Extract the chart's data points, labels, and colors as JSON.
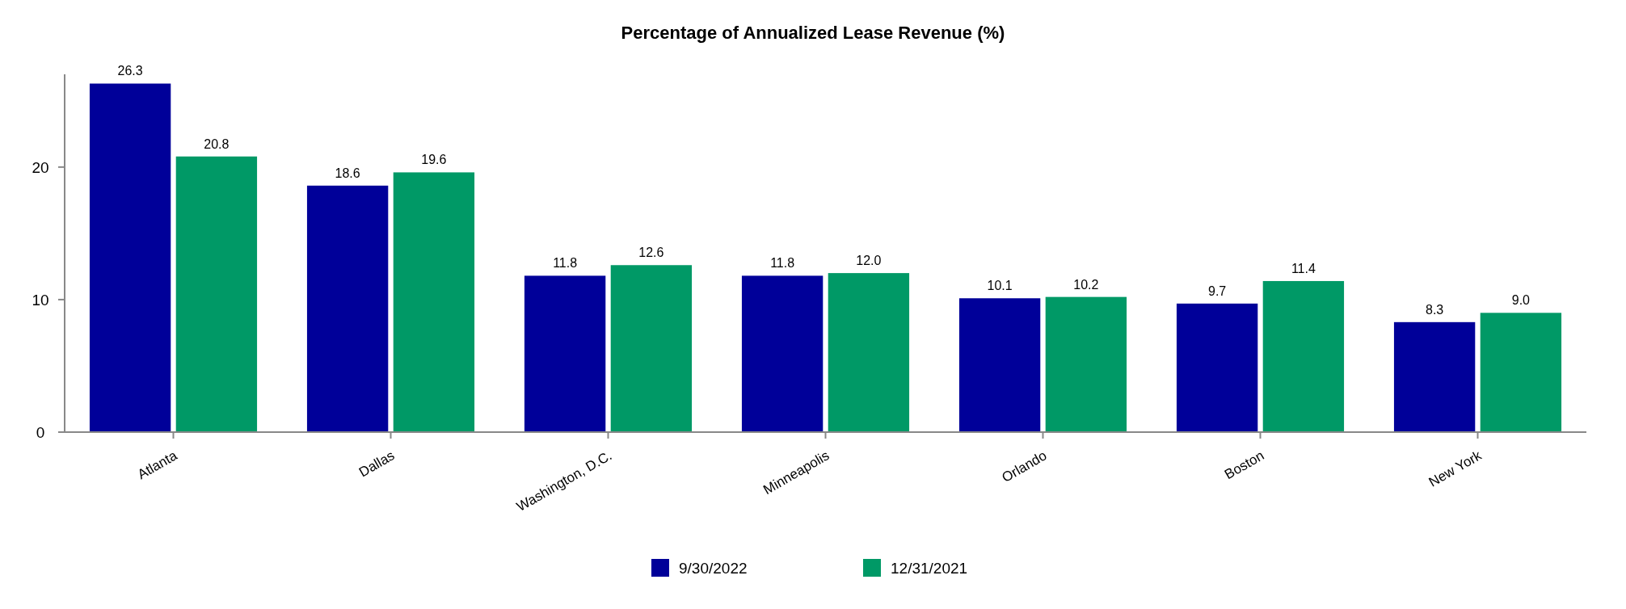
{
  "chart_data": {
    "type": "bar",
    "title": "Percentage of Annualized Lease Revenue (%)",
    "categories": [
      "Atlanta",
      "Dallas",
      "Washington, D.C.",
      "Minneapolis",
      "Orlando",
      "Boston",
      "New York"
    ],
    "series": [
      {
        "name": "9/30/2022",
        "color": "#000099",
        "values": [
          26.3,
          18.6,
          11.8,
          11.8,
          10.1,
          9.7,
          8.3
        ],
        "value_labels": [
          "26.3",
          "18.6",
          "11.8",
          "11.8",
          "10.1",
          "9.7",
          "8.3"
        ]
      },
      {
        "name": "12/31/2021",
        "color": "#009966",
        "values": [
          20.8,
          19.6,
          12.6,
          12.0,
          10.2,
          11.4,
          9.0
        ],
        "value_labels": [
          "20.8",
          "19.6",
          "12.6",
          "12.0",
          "10.2",
          "11.4",
          "9.0"
        ]
      }
    ],
    "ylim": [
      0,
      27
    ],
    "yticks": [
      0,
      10,
      20
    ],
    "grid": false,
    "legend": "bottom"
  }
}
